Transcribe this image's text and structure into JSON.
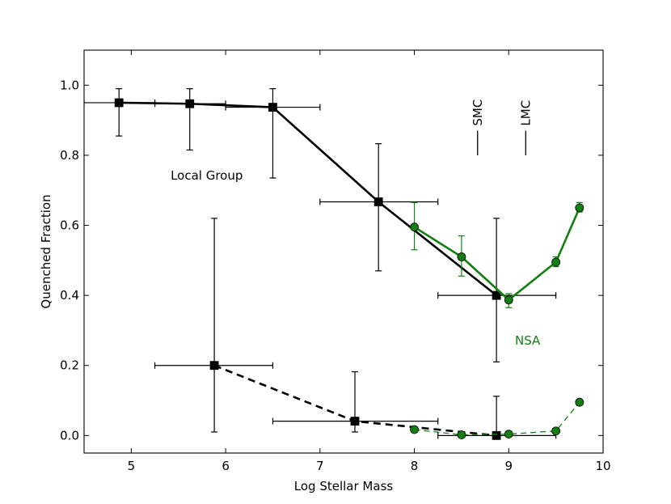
{
  "chart_data": {
    "type": "line",
    "xlabel": "Log Stellar Mass",
    "ylabel": "Quenched Fraction",
    "xlim": [
      4.5,
      10
    ],
    "ylim": [
      -0.05,
      1.1
    ],
    "xticks": [
      5,
      6,
      7,
      8,
      9,
      10
    ],
    "yticks": [
      0.0,
      0.2,
      0.4,
      0.6,
      0.8,
      1.0
    ],
    "ytick_labels": [
      "0.0",
      "0.2",
      "0.4",
      "0.6",
      "0.8",
      "1.0"
    ],
    "grid": false,
    "colors": {
      "local_group": "#000000",
      "nsa": "#118011"
    },
    "series": [
      {
        "name": "Local Group",
        "color": "#000000",
        "marker": "square",
        "line": "solid",
        "points": [
          {
            "x": 4.87,
            "y": 0.95,
            "xmin": 4.5,
            "xmax": 5.25,
            "ymin": 0.855,
            "ymax": 0.99
          },
          {
            "x": 5.62,
            "y": 0.947,
            "xmin": 5.25,
            "xmax": 6.0,
            "ymin": 0.815,
            "ymax": 0.99
          },
          {
            "x": 6.5,
            "y": 0.937,
            "xmin": 6.0,
            "xmax": 7.0,
            "ymin": 0.735,
            "ymax": 0.99
          },
          {
            "x": 7.62,
            "y": 0.667,
            "xmin": 7.0,
            "xmax": 8.25,
            "ymin": 0.47,
            "ymax": 0.833
          },
          {
            "x": 8.87,
            "y": 0.4,
            "xmin": 8.25,
            "xmax": 9.5,
            "ymin": 0.21,
            "ymax": 0.62
          }
        ]
      },
      {
        "name": "NSA",
        "color": "#118011",
        "marker": "circle",
        "line": "solid",
        "points": [
          {
            "x": 8.0,
            "y": 0.595,
            "ymin": 0.53,
            "ymax": 0.665
          },
          {
            "x": 8.5,
            "y": 0.51,
            "ymin": 0.455,
            "ymax": 0.57
          },
          {
            "x": 9.0,
            "y": 0.387,
            "ymin": 0.365,
            "ymax": 0.405
          },
          {
            "x": 9.5,
            "y": 0.495,
            "ymin": 0.482,
            "ymax": 0.51
          },
          {
            "x": 9.75,
            "y": 0.65,
            "ymin": 0.638,
            "ymax": 0.665
          }
        ]
      },
      {
        "color": "#000000",
        "marker": "square",
        "line": "dashed",
        "points": [
          {
            "x": 5.88,
            "y": 0.2,
            "xmin": 5.25,
            "xmax": 6.5,
            "ymin": 0.01,
            "ymax": 0.62
          },
          {
            "x": 7.37,
            "y": 0.041,
            "xmin": 6.5,
            "xmax": 8.25,
            "ymin": 0.01,
            "ymax": 0.182
          },
          {
            "x": 8.87,
            "y": 0.0,
            "xmin": 8.25,
            "xmax": 9.5,
            "ymin": 0.0,
            "ymax": 0.112
          }
        ]
      },
      {
        "color": "#118011",
        "marker": "circle",
        "line": "dashed-thin",
        "points": [
          {
            "x": 8.0,
            "y": 0.017
          },
          {
            "x": 8.5,
            "y": 0.002
          },
          {
            "x": 9.0,
            "y": 0.004
          },
          {
            "x": 9.5,
            "y": 0.013
          },
          {
            "x": 9.75,
            "y": 0.095
          }
        ]
      }
    ],
    "markers": [
      {
        "label": "SMC",
        "x": 8.67,
        "y_from": 0.8,
        "y_to": 0.87
      },
      {
        "label": "LMC",
        "x": 9.18,
        "y_from": 0.8,
        "y_to": 0.87
      }
    ],
    "annotations": [
      {
        "text": "Local Group",
        "x": 5.8,
        "y": 0.73,
        "color": "#000000"
      },
      {
        "text": "NSA",
        "x": 9.2,
        "y": 0.26,
        "color": "#118011"
      }
    ]
  }
}
